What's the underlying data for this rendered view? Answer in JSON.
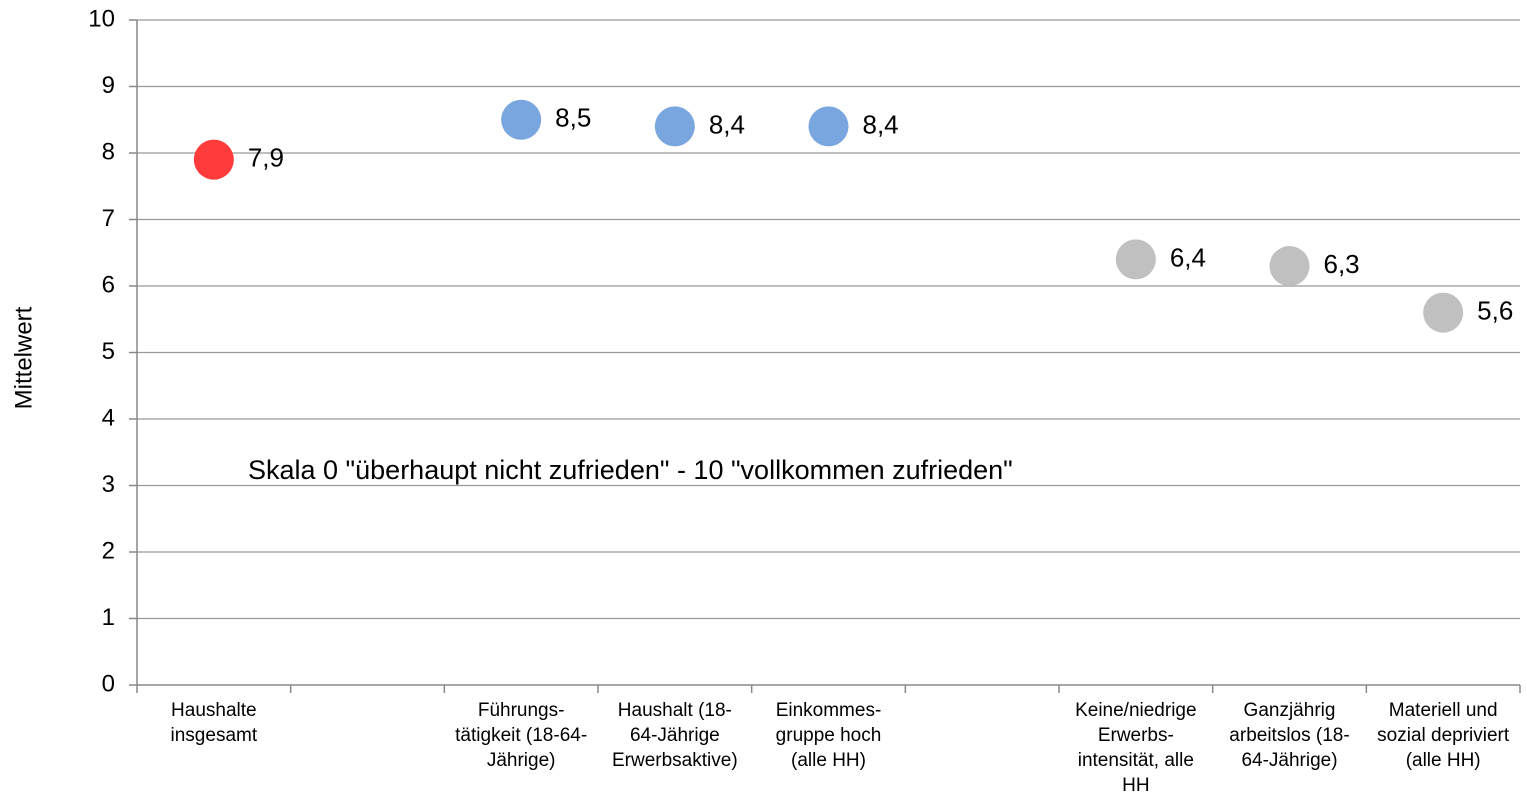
{
  "chart_data": {
    "type": "dot",
    "ylabel": "Mittelwert",
    "annotation": "Skala 0 \"überhaupt nicht zufrieden\" - 10 \"vollkommen zufrieden\"",
    "categories": [
      [
        "Haushalte",
        "insgesamt"
      ],
      null,
      [
        "Führungs-",
        "tätigkeit (18-64-",
        "Jährige)"
      ],
      [
        "Haushalt (18-",
        "64-Jährige",
        "Erwerbsaktive)"
      ],
      [
        "Einkommes-",
        "gruppe hoch",
        "(alle HH)"
      ],
      null,
      [
        "Keine/niedrige",
        "Erwerbs-",
        "intensität, alle",
        "HH"
      ],
      [
        "Ganzjährig",
        "arbeitslos (18-",
        "64-Jährige)"
      ],
      [
        "Materiell und",
        "sozial depriviert",
        "(alle HH)"
      ]
    ],
    "values": [
      7.9,
      null,
      8.5,
      8.4,
      8.4,
      null,
      6.4,
      6.3,
      5.6
    ],
    "value_labels": [
      "7,9",
      null,
      "8,5",
      "8,4",
      "8,4",
      null,
      "6,4",
      "6,3",
      "5,6"
    ],
    "colors": [
      "#ff3b3b",
      null,
      "#7aa6e0",
      "#7aa6e0",
      "#7aa6e0",
      null,
      "#c0c0c0",
      "#c0c0c0",
      "#c0c0c0"
    ],
    "ylim": [
      0,
      10
    ],
    "yticks": [
      0,
      1,
      2,
      3,
      4,
      5,
      6,
      7,
      8,
      9,
      10
    ],
    "grid": true
  }
}
